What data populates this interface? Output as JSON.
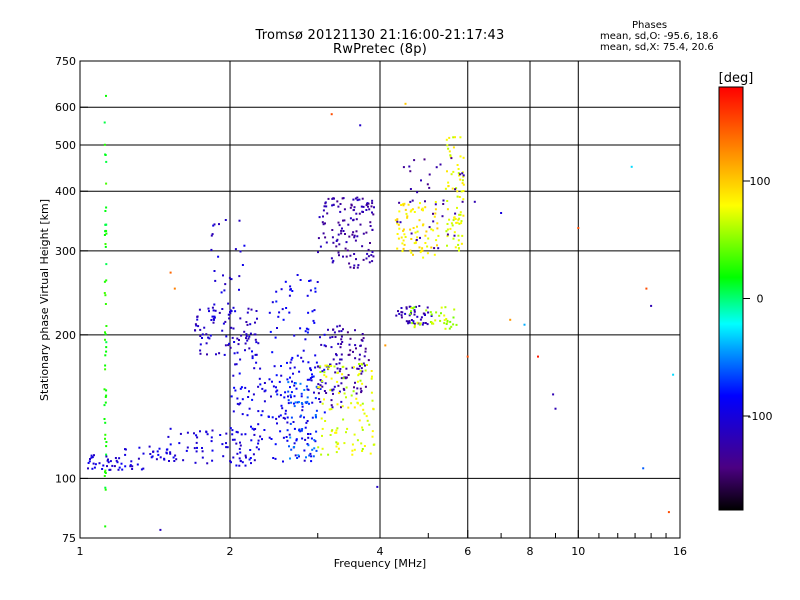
{
  "header": {
    "title": "Tromsø 20121130 21:16:00-21:17:43",
    "subtitle": "RwPretec (8p)"
  },
  "phases_stats": {
    "heading": "Phases",
    "line_o": "mean, sd,O: -95.6, 18.6",
    "line_x": "mean, sd,X:  75.4, 20.6"
  },
  "colorbar": {
    "unit_label": "[deg]",
    "ticks": [
      {
        "label": "100",
        "value": 100
      },
      {
        "label": "0",
        "value": 0
      },
      {
        "label": "-100",
        "value": -100
      }
    ],
    "range": [
      -180,
      180
    ]
  },
  "chart_data": {
    "type": "scatter",
    "title": "Tromsø 20121130 21:16:00-21:17:43",
    "subtitle": "RwPretec (8p)",
    "xlabel": "Frequency [MHz]",
    "ylabel": "Stationary phase Virtual Height [km]",
    "x_scale": "log",
    "y_scale": "log",
    "xlim": [
      1,
      16
    ],
    "ylim": [
      75,
      750
    ],
    "x_ticks": [
      {
        "label": "1",
        "value": 1
      },
      {
        "label": "2",
        "value": 2
      },
      {
        "label": "4",
        "value": 4
      },
      {
        "label": "6",
        "value": 6
      },
      {
        "label": "8",
        "value": 8
      },
      {
        "label": "10",
        "value": 10
      },
      {
        "label": "16",
        "value": 16
      }
    ],
    "x_gridlines": [
      2,
      4,
      6,
      8,
      10
    ],
    "x_minor": [
      3,
      5,
      7,
      9,
      11,
      12,
      13,
      14,
      15
    ],
    "y_ticks": [
      {
        "label": "750",
        "value": 750
      },
      {
        "label": "600",
        "value": 600
      },
      {
        "label": "500",
        "value": 500
      },
      {
        "label": "400",
        "value": 400
      },
      {
        "label": "300",
        "value": 300
      },
      {
        "label": "200",
        "value": 200
      },
      {
        "label": "100",
        "value": 100
      },
      {
        "label": "75",
        "value": 75
      }
    ],
    "y_gridlines": [
      600,
      500,
      400,
      300,
      200,
      100
    ],
    "grid": true,
    "color_axis": {
      "label": "Phase [deg]",
      "range": [
        -180,
        180
      ]
    },
    "traces": [
      {
        "name": "",
        "x_range": [
          1.12,
          1.13
        ],
        "y_range": [
          78,
          640
        ],
        "phase": 20,
        "count": 55
      },
      {
        "name": "",
        "x_range": [
          1.0,
          1.2
        ],
        "y_range": [
          104,
          112
        ],
        "phase": -105,
        "count": 30
      },
      {
        "name": "",
        "x_range": [
          1.2,
          1.5
        ],
        "y_range": [
          104,
          118
        ],
        "phase": -100,
        "count": 35
      },
      {
        "name": "",
        "x_range": [
          1.5,
          2.3
        ],
        "y_range": [
          106,
          128
        ],
        "phase": -100,
        "count": 70
      },
      {
        "name": "",
        "x_range": [
          2.0,
          3.0
        ],
        "y_range": [
          108,
          185
        ],
        "phase": -95,
        "count": 140
      },
      {
        "name": "",
        "x_range": [
          1.7,
          2.3
        ],
        "y_range": [
          180,
          230
        ],
        "phase": -110,
        "count": 90
      },
      {
        "name": "",
        "x_range": [
          1.8,
          2.15
        ],
        "y_range": [
          215,
          350
        ],
        "phase": -105,
        "count": 30
      },
      {
        "name": "",
        "x_range": [
          2.4,
          3.1
        ],
        "y_range": [
          120,
          270
        ],
        "phase": -90,
        "count": 90
      },
      {
        "name": "",
        "x_range": [
          2.6,
          3.0
        ],
        "y_range": [
          110,
          160
        ],
        "phase": -60,
        "count": 50
      },
      {
        "name": "",
        "x_range": [
          3.0,
          3.4
        ],
        "y_range": [
          140,
          210
        ],
        "phase": -120,
        "count": 60
      },
      {
        "name": "",
        "x_range": [
          3.3,
          3.8
        ],
        "y_range": [
          150,
          205
        ],
        "phase": -130,
        "count": 55
      },
      {
        "name": "",
        "x_range": [
          3.0,
          3.9
        ],
        "y_range": [
          112,
          175
        ],
        "phase": 70,
        "count": 110
      },
      {
        "name": "",
        "x_range": [
          3.0,
          3.9
        ],
        "y_range": [
          275,
          390
        ],
        "phase": -125,
        "count": 130
      },
      {
        "name": "",
        "x_range": [
          4.3,
          5.1
        ],
        "y_range": [
          210,
          230
        ],
        "phase": -120,
        "count": 45
      },
      {
        "name": "",
        "x_range": [
          4.6,
          5.7
        ],
        "y_range": [
          205,
          230
        ],
        "phase": 60,
        "count": 40
      },
      {
        "name": "",
        "x_range": [
          4.3,
          5.3
        ],
        "y_range": [
          290,
          380
        ],
        "phase": 85,
        "count": 80
      },
      {
        "name": "",
        "x_range": [
          5.4,
          5.9
        ],
        "y_range": [
          300,
          520
        ],
        "phase": 75,
        "count": 75
      },
      {
        "name": "",
        "x_range": [
          4.3,
          5.9
        ],
        "y_range": [
          300,
          470
        ],
        "phase": -130,
        "count": 40
      }
    ],
    "scattered_points": [
      {
        "x": 3.2,
        "y": 580,
        "phase": 150
      },
      {
        "x": 3.65,
        "y": 550,
        "phase": -110
      },
      {
        "x": 4.5,
        "y": 610,
        "phase": 100
      },
      {
        "x": 1.45,
        "y": 78,
        "phase": -115
      },
      {
        "x": 1.52,
        "y": 270,
        "phase": 140
      },
      {
        "x": 1.55,
        "y": 250,
        "phase": 130
      },
      {
        "x": 3.95,
        "y": 96,
        "phase": -110
      },
      {
        "x": 6.2,
        "y": 380,
        "phase": -120
      },
      {
        "x": 7.0,
        "y": 360,
        "phase": -100
      },
      {
        "x": 10.0,
        "y": 335,
        "phase": 150
      },
      {
        "x": 12.8,
        "y": 450,
        "phase": -30
      },
      {
        "x": 14.0,
        "y": 230,
        "phase": -120
      },
      {
        "x": 13.7,
        "y": 250,
        "phase": 150
      },
      {
        "x": 8.9,
        "y": 150,
        "phase": -120
      },
      {
        "x": 9.0,
        "y": 140,
        "phase": -120
      },
      {
        "x": 8.3,
        "y": 180,
        "phase": 170
      },
      {
        "x": 13.5,
        "y": 105,
        "phase": -60
      },
      {
        "x": 15.2,
        "y": 85,
        "phase": 150
      },
      {
        "x": 15.5,
        "y": 165,
        "phase": -30
      },
      {
        "x": 6.0,
        "y": 180,
        "phase": 150
      },
      {
        "x": 7.3,
        "y": 215,
        "phase": 120
      },
      {
        "x": 7.8,
        "y": 210,
        "phase": -40
      },
      {
        "x": 4.1,
        "y": 190,
        "phase": 120
      }
    ]
  }
}
